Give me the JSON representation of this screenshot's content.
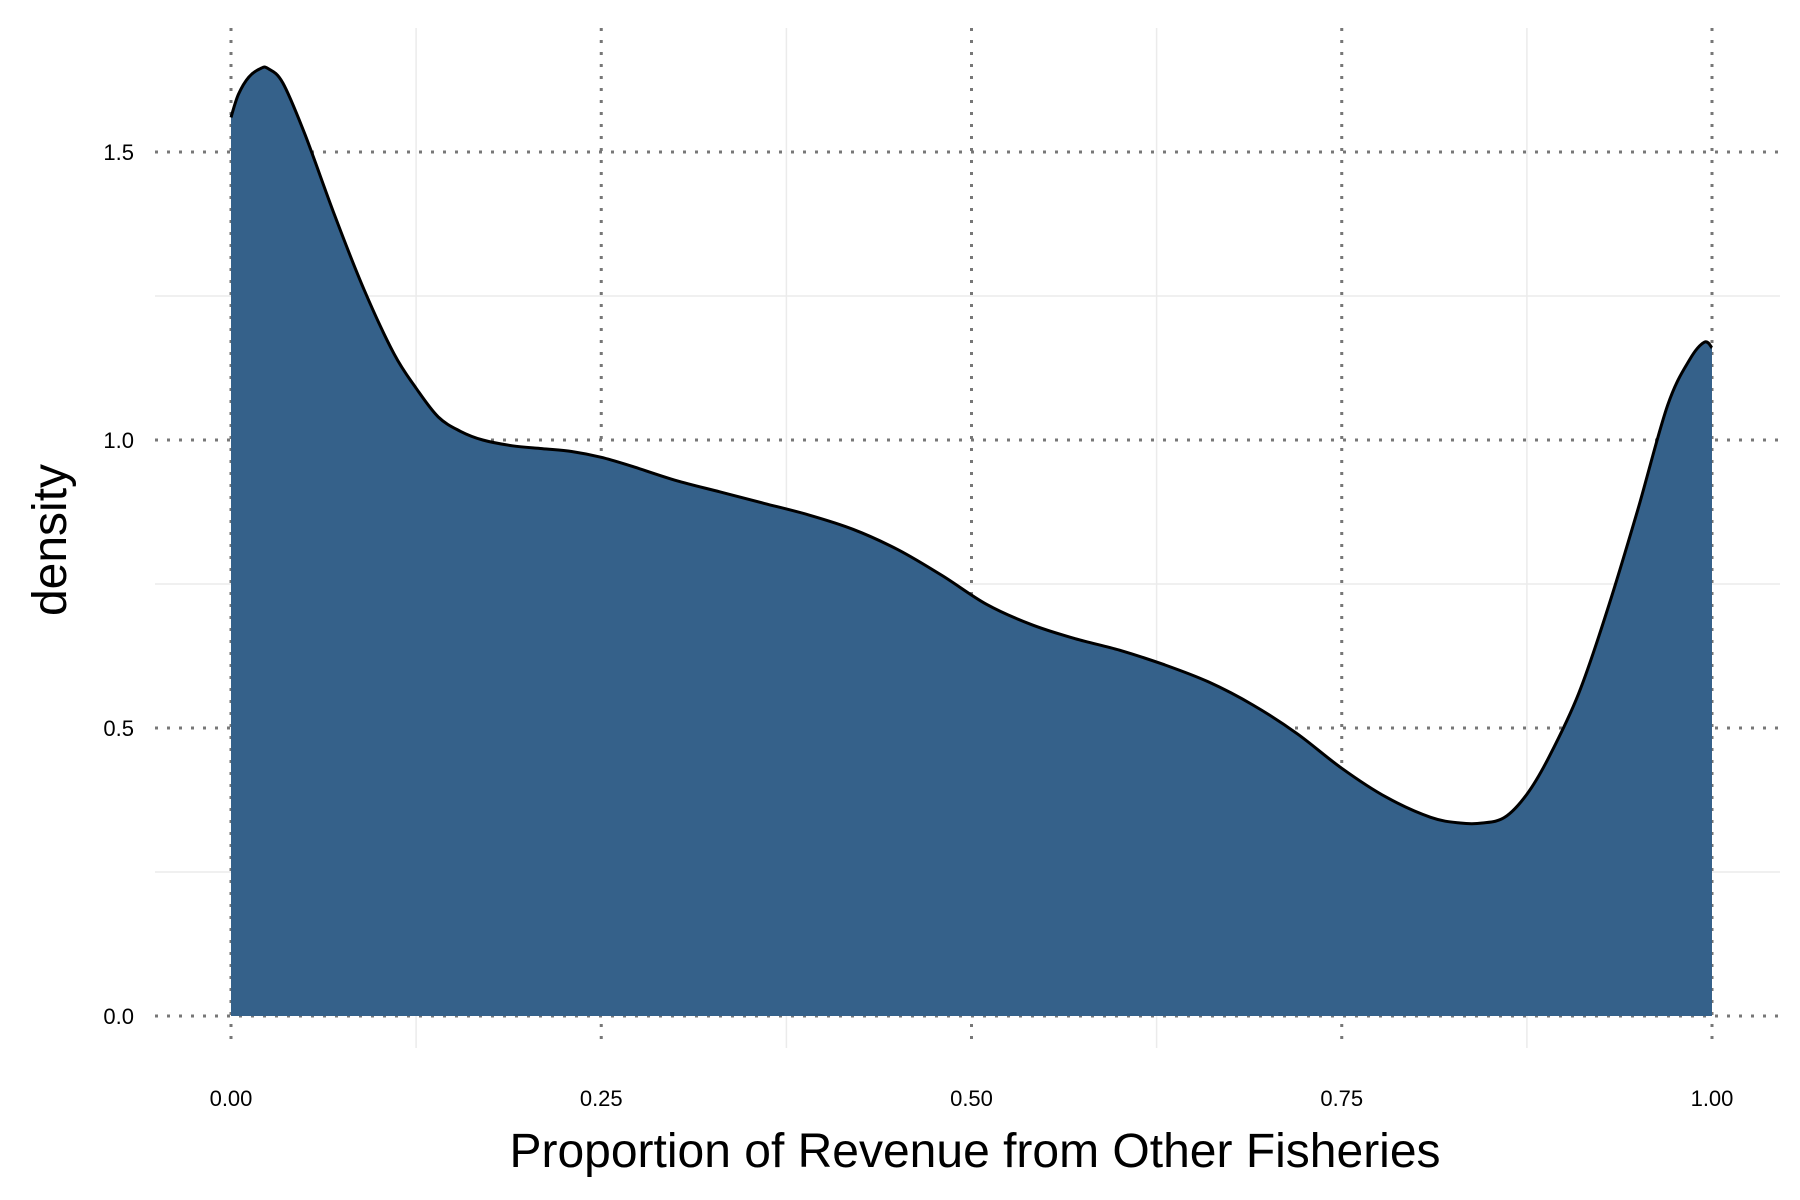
{
  "chart_data": {
    "type": "area",
    "title": "",
    "xlabel": "Proportion of Revenue from Other Fisheries",
    "ylabel": "density",
    "xlim": [
      0,
      1
    ],
    "ylim": [
      0,
      1.65
    ],
    "x_ticks": [
      0,
      0.25,
      0.5,
      0.75,
      1
    ],
    "x_tick_labels": [
      "0.00",
      "0.25",
      "0.50",
      "0.75",
      "1.00"
    ],
    "y_ticks": [
      0,
      0.5,
      1,
      1.5
    ],
    "y_tick_labels": [
      "0.0",
      "0.5",
      "1.0",
      "1.5"
    ],
    "grid": "major dotted, minor solid light",
    "legend": "none",
    "fill_color": "#35618a",
    "line_color": "#000000",
    "series": [
      {
        "x": [
          0,
          0.005,
          0.012,
          0.02,
          0.025,
          0.035,
          0.05,
          0.07,
          0.09,
          0.11,
          0.125,
          0.14,
          0.155,
          0.17,
          0.19,
          0.21,
          0.23,
          0.25,
          0.27,
          0.3,
          0.33,
          0.36,
          0.39,
          0.42,
          0.45,
          0.48,
          0.51,
          0.54,
          0.57,
          0.6,
          0.63,
          0.66,
          0.69,
          0.72,
          0.75,
          0.78,
          0.81,
          0.83,
          0.845,
          0.86,
          0.875,
          0.89,
          0.91,
          0.93,
          0.95,
          0.97,
          0.985,
          0.995,
          1.0
        ],
        "y": [
          1.56,
          1.6,
          1.63,
          1.645,
          1.645,
          1.62,
          1.53,
          1.39,
          1.26,
          1.15,
          1.09,
          1.04,
          1.015,
          1.0,
          0.99,
          0.985,
          0.98,
          0.97,
          0.955,
          0.93,
          0.91,
          0.89,
          0.87,
          0.845,
          0.81,
          0.765,
          0.715,
          0.68,
          0.655,
          0.635,
          0.61,
          0.58,
          0.54,
          0.49,
          0.43,
          0.38,
          0.345,
          0.335,
          0.335,
          0.345,
          0.385,
          0.45,
          0.56,
          0.71,
          0.88,
          1.06,
          1.14,
          1.17,
          1.16
        ]
      }
    ]
  }
}
